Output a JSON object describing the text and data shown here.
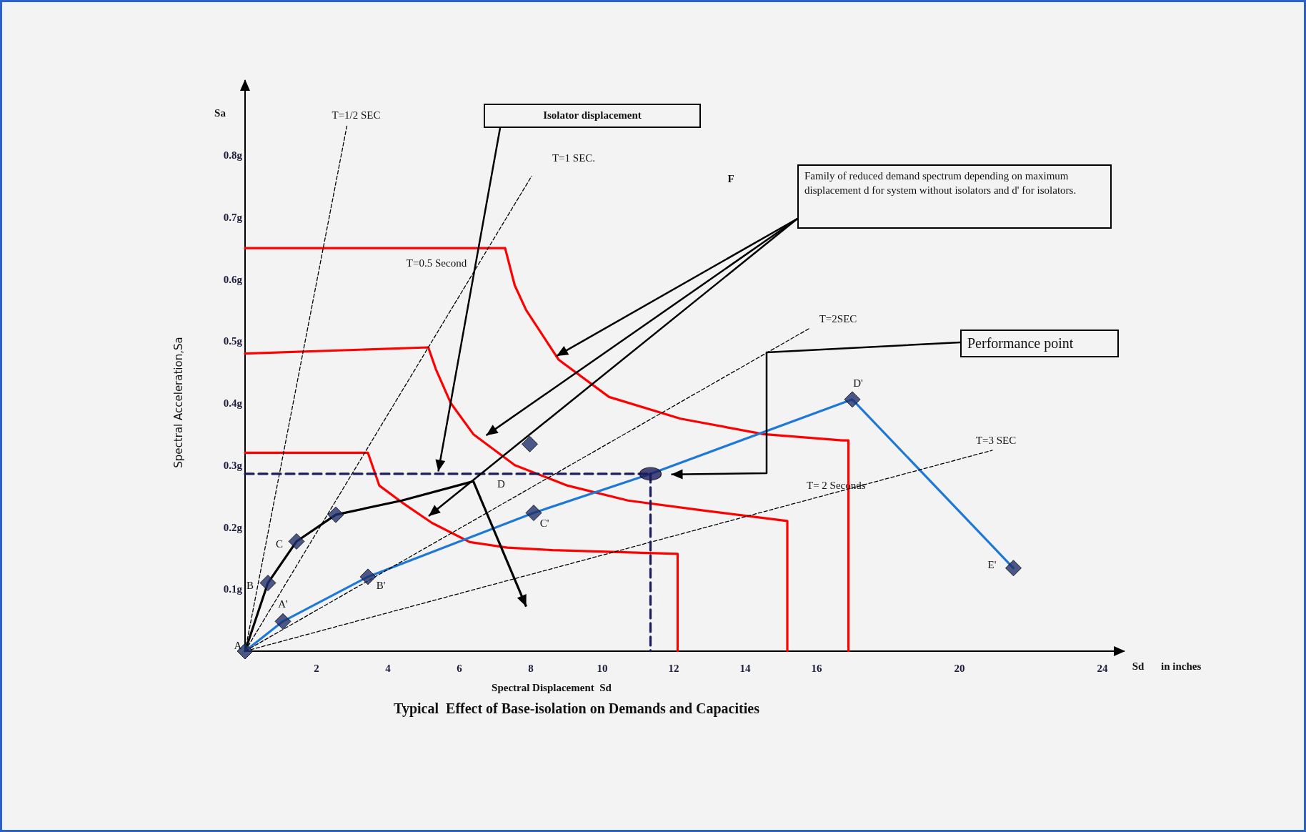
{
  "chart_data": {
    "type": "line",
    "title": "Typical  Effect of Base-isolation on Demands and Capacities",
    "xlabel": "Spectral Displacement  Sd",
    "ylabel": "Spectral Acceleration,Sa",
    "xlim": [
      0,
      24.6
    ],
    "ylim": [
      0,
      0.92
    ],
    "xticks": [
      2,
      4,
      6,
      8,
      10,
      12,
      14,
      16,
      20,
      24
    ],
    "yticks": [
      {
        "value": 0.1,
        "label": "0.1g"
      },
      {
        "value": 0.2,
        "label": "0.2g"
      },
      {
        "value": 0.3,
        "label": "0.3g"
      },
      {
        "value": 0.4,
        "label": "0.4g"
      },
      {
        "value": 0.5,
        "label": "0.5g"
      },
      {
        "value": 0.6,
        "label": "0.6g"
      },
      {
        "value": 0.7,
        "label": "0.7g"
      },
      {
        "value": 0.8,
        "label": "0.8g"
      }
    ],
    "grid": false,
    "series": [
      {
        "color": "#ff0000",
        "x": [
          0,
          7.28,
          7.55,
          7.87,
          8.78,
          10.19,
          12.19,
          14.51,
          16.72,
          16.89,
          16.89
        ],
        "values": [
          0.65,
          0.65,
          0.59,
          0.55,
          0.47,
          0.41,
          0.375,
          0.35,
          0.34,
          0.34,
          0
        ]
      },
      {
        "color": "#ff0000",
        "x": [
          0,
          5.13,
          5.34,
          5.76,
          6.39,
          7.55,
          9.03,
          10.72,
          12.82,
          15.18,
          15.18
        ],
        "values": [
          0.48,
          0.49,
          0.455,
          0.4,
          0.35,
          0.3,
          0.267,
          0.243,
          0.227,
          0.21,
          0
        ]
      },
      {
        "color": "#ff0000",
        "x": [
          0,
          3.44,
          3.76,
          4.39,
          5.23,
          6.29,
          7.34,
          8.61,
          12.11,
          12.11
        ],
        "values": [
          0.32,
          0.32,
          0.267,
          0.24,
          0.207,
          0.176,
          0.167,
          0.163,
          0.157,
          0
        ]
      },
      {
        "color": "#000000",
        "x": [
          0,
          0.64,
          1.44,
          2.54,
          4.39,
          6.39
        ],
        "values": [
          0,
          0.11,
          0.177,
          0.22,
          0.243,
          0.274
        ]
      },
      {
        "color": "#1e78d7",
        "x": [
          0,
          1.06,
          3.44,
          8.08,
          11.35,
          17.0,
          21.51
        ],
        "values": [
          0,
          0.048,
          0.12,
          0.223,
          0.286,
          0.406,
          0.134
        ]
      },
      {
        "color": "#000000",
        "line_style": "dashed",
        "x": [
          0,
          2.85
        ],
        "values": [
          0,
          0.847
        ]
      },
      {
        "color": "#000000",
        "line_style": "dashed",
        "x": [
          0,
          8.02
        ],
        "values": [
          0,
          0.766
        ]
      },
      {
        "color": "#000000",
        "line_style": "dashed",
        "x": [
          0,
          15.78
        ],
        "values": [
          0,
          0.52
        ]
      },
      {
        "color": "#000000",
        "line_style": "dashed",
        "x": [
          0,
          20.92
        ],
        "values": [
          0,
          0.324
        ]
      },
      {
        "color": "#1c1c5c",
        "line_style": "dashed",
        "x": [
          0,
          11.35
        ],
        "values": [
          0.286,
          0.286
        ]
      },
      {
        "color": "#1c1c5c",
        "line_style": "dashed",
        "x": [
          11.35,
          11.35
        ],
        "values": [
          0.286,
          0
        ]
      },
      {
        "type": "scatter",
        "marker": "diamond",
        "color": "#1f2f6b",
        "x": [
          0,
          0.64,
          1.44,
          2.54,
          1.06,
          3.44,
          8.08,
          7.97,
          17.0,
          21.51
        ],
        "values": [
          0,
          0.11,
          0.177,
          0.22,
          0.048,
          0.12,
          0.223,
          0.334,
          0.406,
          0.134
        ]
      },
      {
        "type": "scatter",
        "marker": "circle",
        "color": "#1c1c5c",
        "x": [
          11.35
        ],
        "values": [
          0.286
        ]
      }
    ],
    "annotations": [
      "Sa",
      {
        "text": "T=1/2 SEC",
        "x": 2.85,
        "y": 0.847
      },
      {
        "text": "T=1 SEC.",
        "x": 8.02,
        "y": 0.766
      },
      {
        "text": "T=2SEC",
        "x": 15.78,
        "y": 0.52
      },
      {
        "text": "T=3 SEC",
        "x": 20.92,
        "y": 0.324
      },
      {
        "text": "T=0.5 Second",
        "x": 4.9,
        "y": 0.65
      },
      "T= 2 Seconds",
      {
        "text": "A",
        "x": 0,
        "y": 0
      },
      {
        "text": "B",
        "x": 0.64,
        "y": 0.11
      },
      {
        "text": "C",
        "x": 1.44,
        "y": 0.177
      },
      {
        "text": "D",
        "x": 6.39,
        "y": 0.274
      },
      {
        "text": "A'",
        "x": 1.06,
        "y": 0.048
      },
      {
        "text": "B'",
        "x": 3.44,
        "y": 0.12
      },
      {
        "text": "C'",
        "x": 8.08,
        "y": 0.223
      },
      {
        "text": "D'",
        "x": 17.0,
        "y": 0.406
      },
      {
        "text": "E'",
        "x": 21.51,
        "y": 0.134
      },
      "F",
      "Isolator displacement",
      "Family of reduced demand spectrum depending on maximum displacement d for system without isolators and d' for isolators.",
      "Performance point",
      "Sd",
      "in inches"
    ]
  }
}
